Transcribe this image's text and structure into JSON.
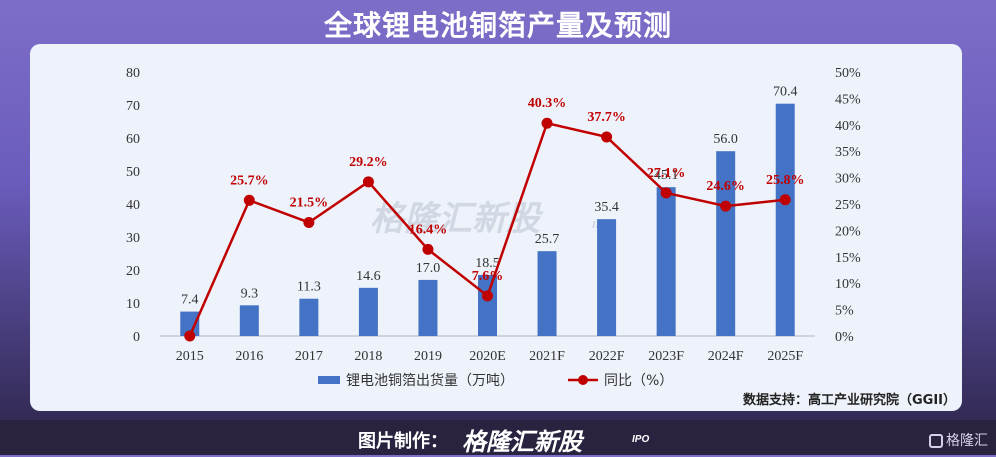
{
  "title": "全球锂电池铜箔产量及预测",
  "source": "数据支持：高工产业研究院（GGII）",
  "watermark": {
    "brand": "格隆汇新股",
    "suffix": "IPO"
  },
  "footer": {
    "label": "图片制作：",
    "brand": "格隆汇新股",
    "suffix": "IPO",
    "corner": "格隆汇"
  },
  "colors": {
    "bar": "#4472c4",
    "line": "#c00000",
    "line_label": "#c00000"
  },
  "chart_data": {
    "type": "bar+line",
    "categories": [
      "2015",
      "2016",
      "2017",
      "2018",
      "2019",
      "2020E",
      "2021F",
      "2022F",
      "2023F",
      "2024F",
      "2025F"
    ],
    "series": [
      {
        "name": "锂电池铜箔出货量（万吨）",
        "type": "bar",
        "axis": "left",
        "values": [
          7.4,
          9.3,
          11.3,
          14.6,
          17.0,
          18.5,
          25.7,
          35.4,
          45.1,
          56.0,
          70.4
        ],
        "labels": [
          "7.4",
          "9.3",
          "11.3",
          "14.6",
          "17.0",
          "18.5",
          "25.7",
          "35.4",
          "45.1",
          "56.0",
          "70.4"
        ]
      },
      {
        "name": "同比（%）",
        "type": "line",
        "axis": "right",
        "values": [
          0,
          25.7,
          21.5,
          29.2,
          16.4,
          7.6,
          40.3,
          37.7,
          27.1,
          24.6,
          25.8
        ],
        "labels": [
          "",
          "25.7%",
          "21.5%",
          "29.2%",
          "16.4%",
          "7.6%",
          "40.3%",
          "37.7%",
          "27.1%",
          "24.6%",
          "25.8%"
        ]
      }
    ],
    "y_left": {
      "min": 0,
      "max": 80,
      "ticks": [
        "0",
        "10",
        "20",
        "30",
        "40",
        "50",
        "60",
        "70",
        "80"
      ]
    },
    "y_right": {
      "min": 0,
      "max": 50,
      "ticks": [
        "0%",
        "5%",
        "10%",
        "15%",
        "20%",
        "25%",
        "30%",
        "35%",
        "40%",
        "45%",
        "50%"
      ]
    },
    "legend_position": "bottom",
    "grid": false
  }
}
